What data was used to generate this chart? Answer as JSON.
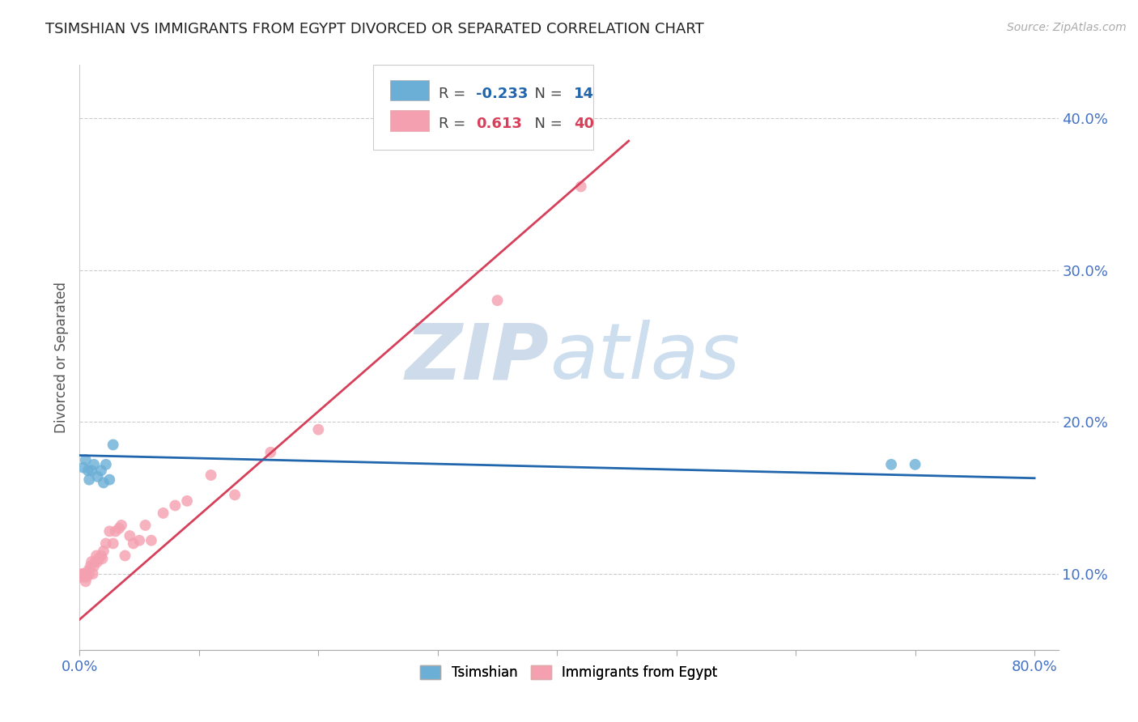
{
  "title": "TSIMSHIAN VS IMMIGRANTS FROM EGYPT DIVORCED OR SEPARATED CORRELATION CHART",
  "source_text": "Source: ZipAtlas.com",
  "ylabel": "Divorced or Separated",
  "xlim": [
    0.0,
    0.82
  ],
  "ylim": [
    0.05,
    0.435
  ],
  "xticks": [
    0.0,
    0.1,
    0.2,
    0.3,
    0.4,
    0.5,
    0.6,
    0.7,
    0.8
  ],
  "yticks": [
    0.1,
    0.2,
    0.3,
    0.4
  ],
  "yticklabels": [
    "10.0%",
    "20.0%",
    "30.0%",
    "40.0%"
  ],
  "blue_color": "#6baed6",
  "pink_color": "#f4a0b0",
  "blue_line_color": "#2166ac",
  "pink_line_color": "#d6405a",
  "legend_R_blue": "-0.233",
  "legend_N_blue": "14",
  "legend_R_pink": "0.613",
  "legend_N_pink": "40",
  "watermark_zip": "ZIP",
  "watermark_atlas": "atlas",
  "legend_label_blue": "Tsimshian",
  "legend_label_pink": "Immigrants from Egypt",
  "tsimshian_x": [
    0.003,
    0.005,
    0.007,
    0.008,
    0.01,
    0.012,
    0.015,
    0.018,
    0.02,
    0.022,
    0.025,
    0.028,
    0.68,
    0.7
  ],
  "tsimshian_y": [
    0.17,
    0.175,
    0.168,
    0.162,
    0.168,
    0.172,
    0.164,
    0.168,
    0.16,
    0.172,
    0.162,
    0.185,
    0.172,
    0.172
  ],
  "egypt_x": [
    0.001,
    0.002,
    0.003,
    0.004,
    0.005,
    0.006,
    0.007,
    0.008,
    0.009,
    0.01,
    0.011,
    0.012,
    0.013,
    0.014,
    0.015,
    0.016,
    0.018,
    0.019,
    0.02,
    0.022,
    0.025,
    0.028,
    0.03,
    0.033,
    0.035,
    0.038,
    0.042,
    0.045,
    0.05,
    0.055,
    0.06,
    0.07,
    0.08,
    0.09,
    0.11,
    0.13,
    0.16,
    0.2,
    0.35,
    0.42
  ],
  "egypt_y": [
    0.098,
    0.1,
    0.1,
    0.098,
    0.095,
    0.098,
    0.102,
    0.1,
    0.105,
    0.108,
    0.1,
    0.105,
    0.108,
    0.112,
    0.108,
    0.11,
    0.112,
    0.11,
    0.115,
    0.12,
    0.128,
    0.12,
    0.128,
    0.13,
    0.132,
    0.112,
    0.125,
    0.12,
    0.122,
    0.132,
    0.122,
    0.14,
    0.145,
    0.148,
    0.165,
    0.152,
    0.18,
    0.195,
    0.28,
    0.355
  ],
  "pink_line_x0": 0.0,
  "pink_line_y0": 0.07,
  "pink_line_x1": 0.46,
  "pink_line_y1": 0.385,
  "blue_line_x0": 0.0,
  "blue_line_y0": 0.178,
  "blue_line_x1": 0.8,
  "blue_line_y1": 0.163
}
